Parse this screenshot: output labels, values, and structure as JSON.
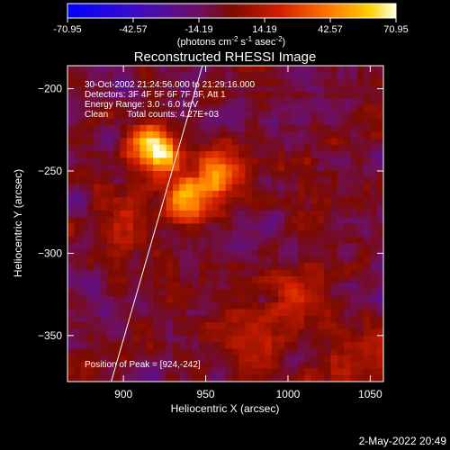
{
  "footer_timestamp": "2-May-2022 20:49",
  "colorbar": {
    "tick_labels": [
      "-70.95",
      "-42.57",
      "-14.19",
      "14.19",
      "42.57",
      "70.95"
    ],
    "range": [
      -70.95,
      70.95
    ],
    "units_main": "(photons cm",
    "units_sup1": "-2",
    "units_mid1": " s",
    "units_sup2": "-1",
    "units_mid2": " asec",
    "units_sup3": "-2",
    "units_end": ")"
  },
  "chart_data": {
    "type": "heatmap",
    "title": "Reconstructed RHESSI Image",
    "xlabel": "Heliocentric X (arcsec)",
    "ylabel": "Heliocentric Y (arcsec)",
    "xlim": [
      866,
      1058
    ],
    "ylim": [
      -378,
      -186
    ],
    "x_ticks": [
      900,
      950,
      1000,
      1050
    ],
    "y_ticks": [
      -200,
      -250,
      -300,
      -350
    ],
    "x_tick_labels": [
      "900",
      "950",
      "1000",
      "1050"
    ],
    "y_tick_labels": [
      "−200",
      "−250",
      "−300",
      "−350"
    ],
    "annotations": [
      "30-Oct-2002 21:24:56.000 to 21:29:16.000",
      "Detectors: 3F 4F 5F 6F 7F 8F, Att 1",
      "Energy Range: 3.0 - 6.0 keV",
      "Clean",
      "Total counts: 4.27E+03"
    ],
    "peak_label": "Position of Peak = [924,-242]",
    "peak_position": [
      924,
      -242
    ],
    "limb_line": [
      [
        892,
        -380
      ],
      [
        948,
        -186
      ]
    ],
    "bright_sources": [
      {
        "x": 924,
        "y": -240,
        "amp": 70,
        "w": 9
      },
      {
        "x": 940,
        "y": -268,
        "amp": 62,
        "w": 9
      },
      {
        "x": 958,
        "y": -252,
        "amp": 55,
        "w": 10
      },
      {
        "x": 912,
        "y": -232,
        "amp": 45,
        "w": 8
      },
      {
        "x": 900,
        "y": -280,
        "amp": 30,
        "w": 12
      },
      {
        "x": 1010,
        "y": -325,
        "amp": 34,
        "w": 11
      },
      {
        "x": 980,
        "y": -350,
        "amp": 28,
        "w": 12
      },
      {
        "x": 1040,
        "y": -365,
        "amp": 20,
        "w": 12
      }
    ]
  }
}
